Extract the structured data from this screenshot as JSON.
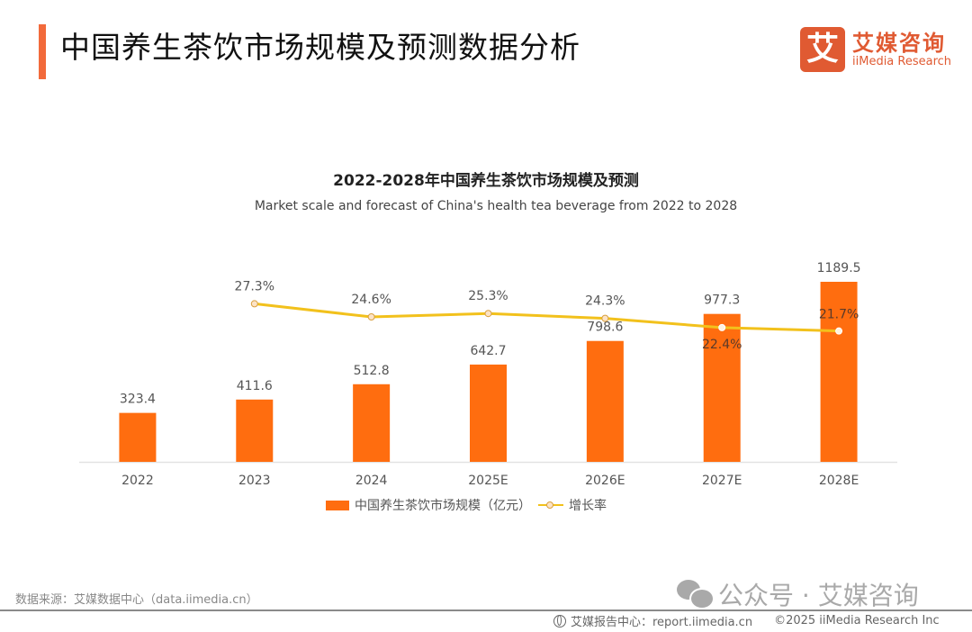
{
  "header": {
    "title": "中国养生茶饮市场规模及预测数据分析",
    "accent_color": "#f26a3b"
  },
  "logo": {
    "icon_char": "艾",
    "name_cn": "艾媒咨询",
    "name_en": "iiMedia Research",
    "color": "#e05a32"
  },
  "chart_data": {
    "type": "bar",
    "title": "2022-2028年中国养生茶饮市场规模及预测",
    "subtitle": "Market scale and forecast of China's health tea beverage from 2022 to 2028",
    "categories": [
      "2022",
      "2023",
      "2024",
      "2025E",
      "2026E",
      "2027E",
      "2028E"
    ],
    "series": [
      {
        "name": "中国养生茶饮市场规模（亿元）",
        "type": "bar",
        "color": "#ff6d0f",
        "values": [
          323.4,
          411.6,
          512.8,
          642.7,
          798.6,
          977.3,
          1189.5
        ],
        "labels": [
          "323.4",
          "411.6",
          "512.8",
          "642.7",
          "798.6",
          "977.3",
          "1189.5"
        ]
      },
      {
        "name": "增长率",
        "type": "line",
        "color": "#f2c11c",
        "unit": "%",
        "values": [
          null,
          27.3,
          24.6,
          25.3,
          24.3,
          22.4,
          21.7
        ],
        "labels": [
          "",
          "27.3%",
          "24.6%",
          "25.3%",
          "24.3%",
          "22.4%",
          "21.7%"
        ]
      }
    ],
    "xlabel": "",
    "ylabel": "",
    "ylim": [
      0,
      1250
    ],
    "grid": false,
    "legend": "bottom-center"
  },
  "legend": {
    "bar_label": "中国养生茶饮市场规模（亿元）",
    "line_label": "增长率"
  },
  "source": "数据来源：艾媒数据中心（data.iimedia.cn）",
  "watermark": "公众号 · 艾媒咨询",
  "footer": {
    "report_center": "艾媒报告中心：report.iimedia.cn",
    "copyright": "©2025  iiMedia Research  Inc"
  }
}
